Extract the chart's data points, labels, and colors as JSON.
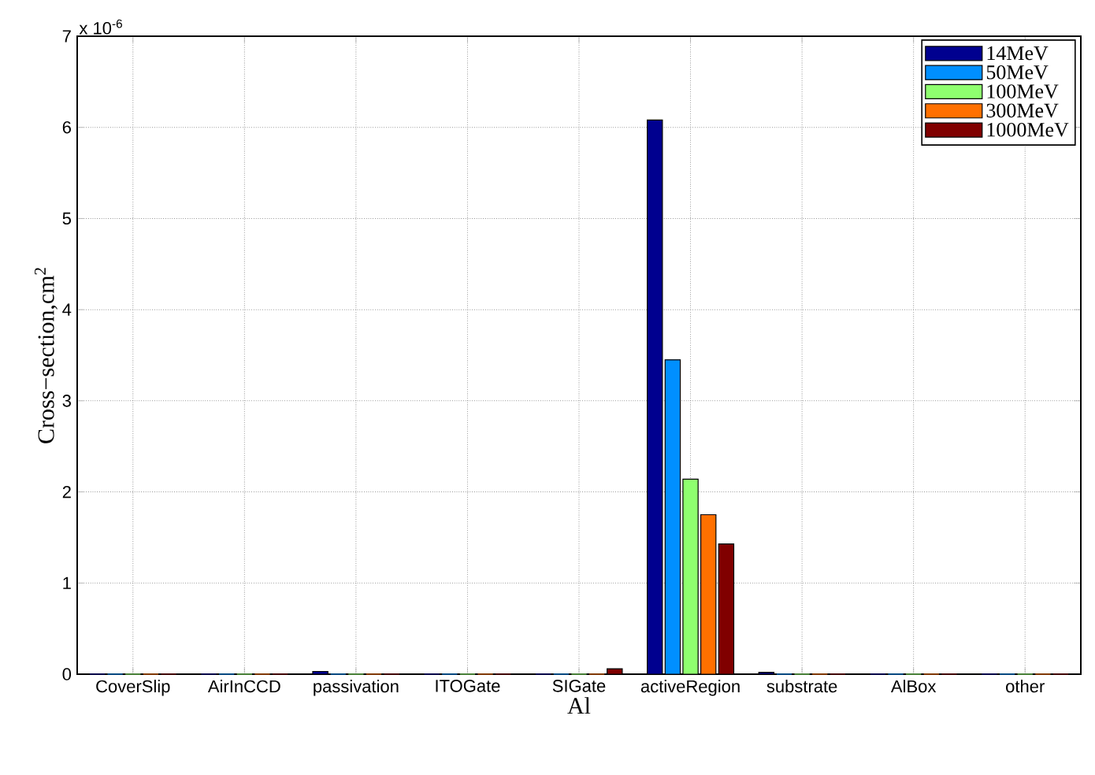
{
  "chart_data": {
    "type": "bar",
    "xlabel": "Al",
    "ylabel": "Cross−section,cm$^{2}$",
    "annotations": [
      "x 10$^{-6}$"
    ],
    "categories": [
      "CoverSlip",
      "AirInCCD",
      "passivation",
      "ITOGate",
      "SIGate",
      "activeRegion",
      "substrate",
      "AlBox",
      "other"
    ],
    "series": [
      {
        "name": "14MeV",
        "color": "#00008f",
        "values": [
          0,
          0,
          0.03,
          0,
          0,
          6.08,
          0.02,
          0,
          0
        ]
      },
      {
        "name": "50MeV",
        "color": "#008fff",
        "values": [
          0,
          0,
          0,
          0,
          0,
          3.45,
          0,
          0,
          0
        ]
      },
      {
        "name": "100MeV",
        "color": "#8fff6f",
        "values": [
          0,
          0,
          0,
          0,
          0,
          2.14,
          0,
          0,
          0
        ]
      },
      {
        "name": "300MeV",
        "color": "#ff7000",
        "values": [
          0,
          0,
          0,
          0,
          0,
          1.75,
          0,
          0,
          0
        ]
      },
      {
        "name": "1000MeV",
        "color": "#800000",
        "values": [
          0,
          0,
          0,
          0,
          0.06,
          1.43,
          0,
          0,
          0
        ]
      }
    ],
    "ylim": [
      0,
      7
    ],
    "yticks": [
      0,
      1,
      2,
      3,
      4,
      5,
      6,
      7
    ],
    "grid": true,
    "legend": "top right"
  }
}
